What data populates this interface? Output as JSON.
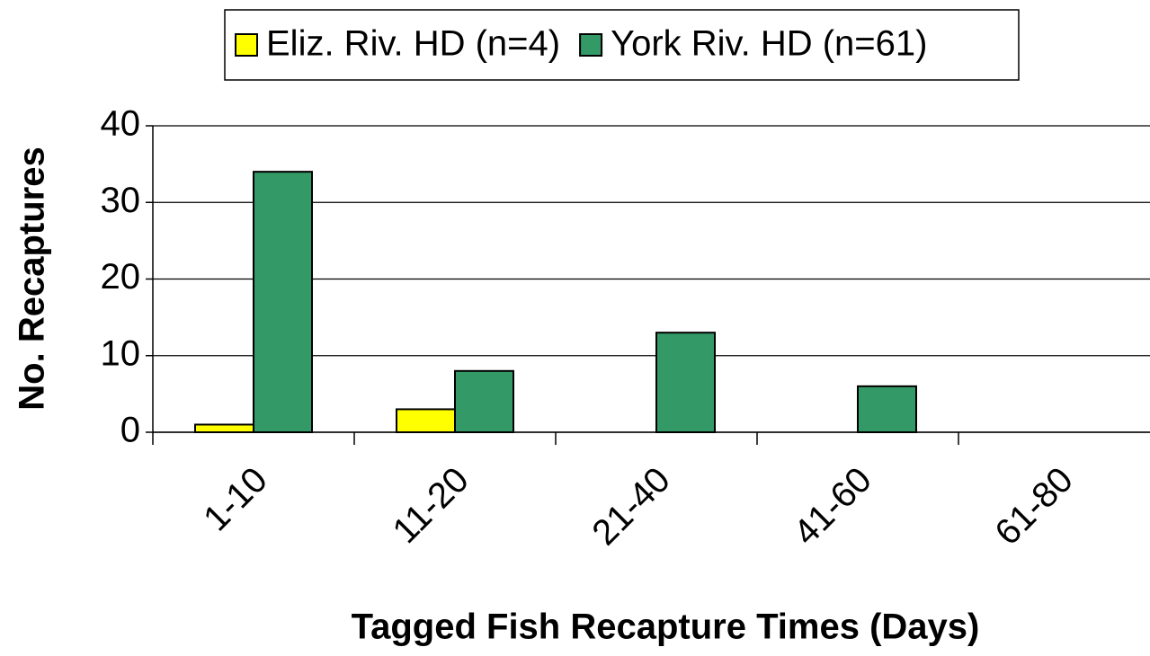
{
  "chart_data": {
    "type": "bar",
    "categories": [
      "1-10",
      "11-20",
      "21-40",
      "41-60",
      "61-80"
    ],
    "series": [
      {
        "name": "Eliz. Riv. HD (n=4)",
        "color": "#ffff00",
        "values": [
          1,
          3,
          0,
          0,
          0
        ]
      },
      {
        "name": "York Riv. HD (n=61)",
        "color": "#339966",
        "values": [
          34,
          8,
          13,
          6,
          0
        ]
      }
    ],
    "xlabel": "Tagged Fish Recapture Times (Days)",
    "ylabel": "No. Recaptures",
    "ylim": [
      0,
      40
    ],
    "yticks": [
      0,
      10,
      20,
      30,
      40
    ],
    "grid": true,
    "legend": "top"
  }
}
